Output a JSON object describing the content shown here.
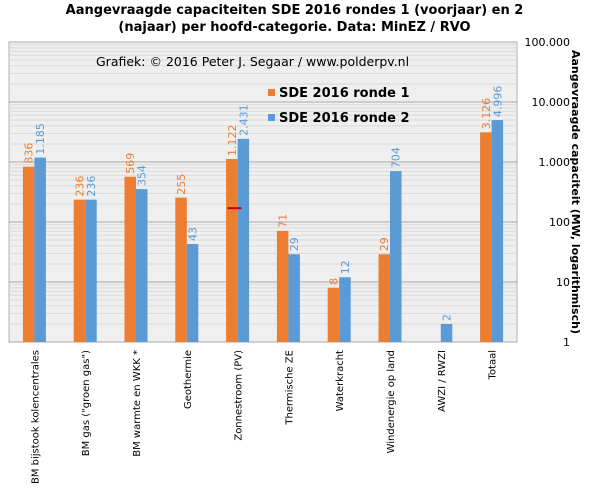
{
  "chart_data": {
    "type": "bar",
    "title_lines": [
      "Aangevraagde capaciteiten SDE 2016 rondes 1 (voorjaar) en 2",
      "(najaar) per hoofd-categorie. Data: MinEZ  / RVO"
    ],
    "credit": "Grafiek:  © 2016 Peter J. Segaar / www.polderpv.nl",
    "ylabel": "Aangevraagde capaciteit (MW, logarithmisch)",
    "yscale": "log",
    "ylim": [
      1,
      100000
    ],
    "ytick_values": [
      1,
      10,
      100,
      1000,
      10000,
      100000
    ],
    "ytick_labels": [
      "1",
      "10",
      "100",
      "1.000",
      "10.000",
      "100.000"
    ],
    "grid": true,
    "legend_position": "top-right",
    "categories": [
      "BM bijstook kolencentrales",
      "BM gas (\"groen gas\")",
      "BM warmte en WKK *",
      "Geothermie",
      "Zonnestroom (PV)",
      "Thermische ZE",
      "Waterkracht",
      "Windenergie op land",
      "AWZI / RWZI",
      "Totaal"
    ],
    "series": [
      {
        "name": "SDE 2016 ronde 1",
        "color": "#ed7d31",
        "values": [
          836,
          236,
          569,
          255,
          1122,
          71,
          8,
          29,
          null,
          3126
        ],
        "labels": [
          "836",
          "236",
          "569",
          "255",
          "1.122",
          "71",
          "8",
          "29",
          "",
          "3.126"
        ]
      },
      {
        "name": "SDE 2016 ronde 2",
        "color": "#5b9bd5",
        "values": [
          1185,
          236,
          354,
          43,
          2431,
          29,
          12,
          704,
          2,
          4996
        ],
        "labels": [
          "1.185",
          "236",
          "354",
          "43",
          "2.431",
          "29",
          "12",
          "704",
          "2",
          "4.996"
        ]
      }
    ],
    "marker": {
      "category_index": 4,
      "value": 170,
      "color": "#cc0000"
    }
  }
}
